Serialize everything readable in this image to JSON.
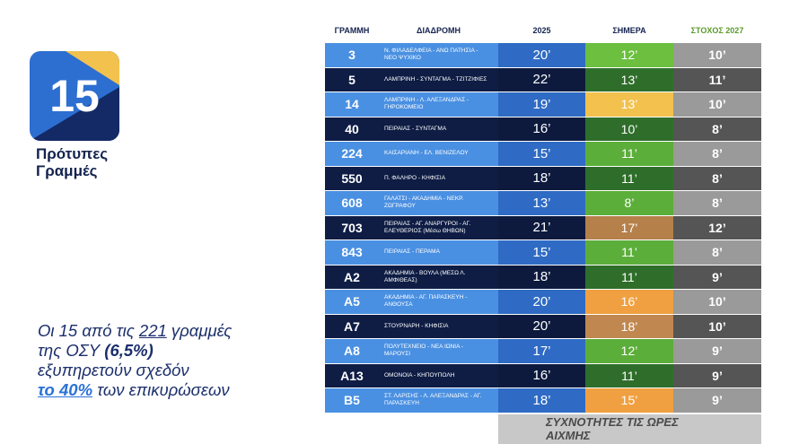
{
  "logo": {
    "number": "15",
    "title": "Πρότυπες Γραμμές"
  },
  "note": {
    "parts": [
      "Οι 15 από τις ",
      "221",
      " γραμμές",
      "της ΟΣΥ ",
      "(6,5%)",
      "εξυπηρετούν σχεδόν",
      "το 40%",
      " των επικυρώσεων"
    ]
  },
  "table": {
    "header": [
      "ΓΡΑΜΜΗ",
      "ΔΙΑΔΡΟΜΗ",
      "2025",
      "ΣΗΜΕΡΑ",
      "ΣΤΟΧΟΣ 2027"
    ],
    "rows": [
      [
        "3",
        "Ν. ΦΙΛΑΔΕΛΦΕΙΑ - ΑΝΩ ΠΑΤΗΣΙΑ - ΝΕΟ ΨΥΧΙΚΟ",
        "20’",
        "12’",
        "10’"
      ],
      [
        "5",
        "ΛΑΜΠΡΙΝΗ - ΣΥΝΤΑΓΜΑ - ΤΖΙΤΖΙΦΙΕΣ",
        "22’",
        "13’",
        "11’"
      ],
      [
        "14",
        "ΛΑΜΠΡΙΝΗ - Λ. ΑΛΕΞΑΝΔΡΑΣ - ΓΗΡΟΚΟΜΕΙΟ",
        "19’",
        "13’",
        "10’"
      ],
      [
        "40",
        "ΠΕΙΡΑΙΑΣ - ΣΥΝΤΑΓΜΑ",
        "16’",
        "10’",
        "8’"
      ],
      [
        "224",
        "ΚΑΙΣΑΡΙΑΝΗ - ΕΛ. ΒΕΝΙΖΕΛΟΥ",
        "15’",
        "11’",
        "8’"
      ],
      [
        "550",
        "Π. ΦΑΛΗΡΟ - ΚΗΦΙΣΙΑ",
        "18’",
        "11’",
        "8’"
      ],
      [
        "608",
        "ΓΑΛΑΤΣΙ - ΑΚΑΔΗΜΙΑ - ΝΕΚΡ. ΖΩΓΡΑΦΟΥ",
        "13’",
        "8’",
        "8’"
      ],
      [
        "703",
        "ΠΕΙΡΑΙΑΣ - ΑΓ. ΑΝΑΡΓΥΡΟΙ - ΑΓ. ΕΛΕΥΘΕΡΙΟΣ (Μέσω ΘΗΒΩΝ)",
        "21’",
        "17’",
        "12’"
      ],
      [
        "843",
        "ΠΕΙΡΑΙΑΣ - ΠΕΡΑΜΑ",
        "15’",
        "11’",
        "8’"
      ],
      [
        "A2",
        "ΑΚΑΔΗΜΙΑ - ΒΟΥΛΑ (ΜΕΣΩ Λ. ΑΜΦΙΘΕΑΣ)",
        "18’",
        "11’",
        "9’"
      ],
      [
        "A5",
        "ΑΚΑΔΗΜΙΑ - ΑΓ. ΠΑΡΑΣΚΕΥΗ - ΑΝΘΟΥΣΑ",
        "20’",
        "16’",
        "10’"
      ],
      [
        "A7",
        "ΣΤΟΥΡΝΑΡΗ - ΚΗΦΙΣΙΑ",
        "20’",
        "18’",
        "10’"
      ],
      [
        "A8",
        "ΠΟΛΥΤΕΧΝΕΙΟ - ΝΕΑ ΙΩΝΙΑ - ΜΑΡΟΥΣΙ",
        "17’",
        "12’",
        "9’"
      ],
      [
        "A13",
        "ΟΜΟΝΟΙΑ - ΚΗΠΟΥΠΟΛΗ",
        "16’",
        "11’",
        "9’"
      ],
      [
        "B5",
        "ΣΤ. ΛΑΡΙΣΗΣ - Λ. ΑΛΕΞΑΝΔΡΑΣ - ΑΓ. ΠΑΡΑΣΚΕΥΗ",
        "18’",
        "15’",
        "9’"
      ]
    ],
    "footer": "ΣΥΧΝΟΤΗΤΕΣ ΤΙΣ ΩΡΕΣ ΑΙΧΜΗΣ"
  }
}
